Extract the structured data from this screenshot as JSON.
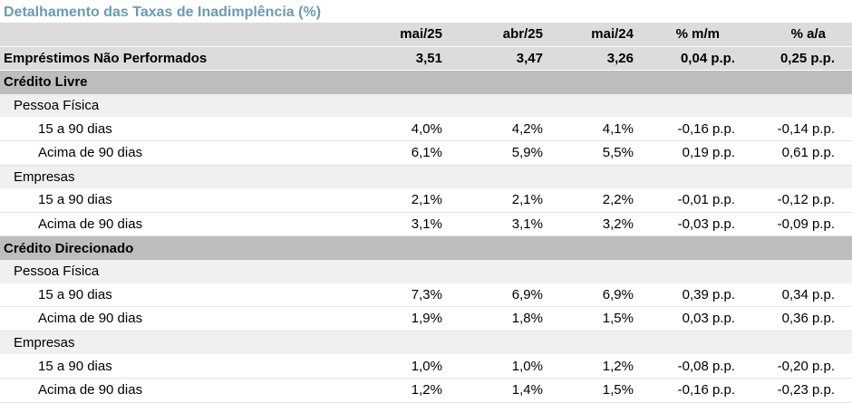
{
  "title": "Detalhamento das Taxas de Inadimplência (%)",
  "headers": [
    "mai/25",
    "abr/25",
    "mai/24",
    "% m/m",
    "% a/a"
  ],
  "summary": {
    "label": "Empréstimos Não Performados",
    "values": [
      "3,51",
      "3,47",
      "3,26",
      "0,04 p.p.",
      "0,25 p.p."
    ]
  },
  "sections": [
    {
      "label": "Crédito Livre",
      "groups": [
        {
          "label": "Pessoa Física",
          "rows": [
            {
              "label": "15 a 90 dias",
              "values": [
                "4,0%",
                "4,2%",
                "4,1%",
                "-0,16 p.p.",
                "-0,14 p.p."
              ]
            },
            {
              "label": "Acima de 90 dias",
              "values": [
                "6,1%",
                "5,9%",
                "5,5%",
                "0,19 p.p.",
                "0,61 p.p."
              ]
            }
          ]
        },
        {
          "label": "Empresas",
          "rows": [
            {
              "label": "15 a 90 dias",
              "values": [
                "2,1%",
                "2,1%",
                "2,2%",
                "-0,01 p.p.",
                "-0,12 p.p."
              ]
            },
            {
              "label": "Acima de 90 dias",
              "values": [
                "3,1%",
                "3,1%",
                "3,2%",
                "-0,03 p.p.",
                "-0,09 p.p."
              ]
            }
          ]
        }
      ]
    },
    {
      "label": "Crédito Direcionado",
      "groups": [
        {
          "label": "Pessoa Física",
          "rows": [
            {
              "label": "15 a 90 dias",
              "values": [
                "7,3%",
                "6,9%",
                "6,9%",
                "0,39 p.p.",
                "0,34 p.p."
              ]
            },
            {
              "label": "Acima de 90 dias",
              "values": [
                "1,9%",
                "1,8%",
                "1,5%",
                "0,03 p.p.",
                "0,36 p.p."
              ]
            }
          ]
        },
        {
          "label": "Empresas",
          "rows": [
            {
              "label": "15 a 90 dias",
              "values": [
                "1,0%",
                "1,0%",
                "1,2%",
                "-0,08 p.p.",
                "-0,20 p.p."
              ]
            },
            {
              "label": "Acima de 90 dias",
              "values": [
                "1,2%",
                "1,4%",
                "1,5%",
                "-0,16 p.p.",
                "-0,23 p.p."
              ]
            }
          ]
        }
      ]
    }
  ]
}
